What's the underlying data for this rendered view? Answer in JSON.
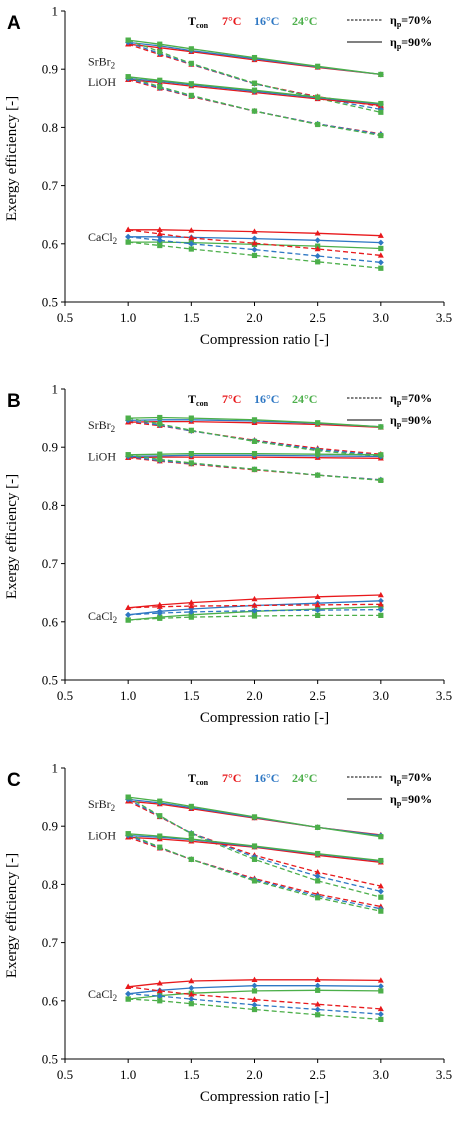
{
  "colors": {
    "red": "#e8191c",
    "blue": "#2f78c4",
    "green": "#4caf4a",
    "text": "#000000"
  },
  "legend": {
    "tcon_prefix": "T",
    "tcon_sub": "con",
    "temps": [
      "7°C",
      "16°C",
      "24°C"
    ],
    "line_styles": [
      {
        "style": "dashed",
        "eta": "η",
        "sub": "p",
        "text": "=70%"
      },
      {
        "style": "solid",
        "eta": "η",
        "sub": "p",
        "text": "=90%"
      }
    ]
  },
  "chart_data": [
    {
      "panel": "A",
      "type": "line",
      "xlabel": "Compression ratio [-]",
      "ylabel": "Exergy efficiency [-]",
      "xlim": [
        0.5,
        3.5
      ],
      "ylim": [
        0.5,
        1.0
      ],
      "x_ticks": [
        "0.5",
        "1.0",
        "1.5",
        "2.0",
        "2.5",
        "3.0",
        "3.5"
      ],
      "y_ticks": [
        "0.5",
        "0.6",
        "0.7",
        "0.8",
        "0.9",
        "1"
      ],
      "x": [
        1.0,
        1.25,
        1.5,
        2.0,
        2.5,
        3.0
      ],
      "material_labels": [
        {
          "base": "SrBr",
          "sub": "2",
          "y": 0.913
        },
        {
          "base": "LiOH",
          "sub": "",
          "y": 0.878
        },
        {
          "base": "CaCl",
          "sub": "2",
          "y": 0.612
        }
      ],
      "series": [
        {
          "material": "SrBr2",
          "tcon": "7°C",
          "eta_p": "90%",
          "style": "solid",
          "values": [
            0.943,
            0.937,
            0.93,
            0.916,
            0.903,
            0.891
          ]
        },
        {
          "material": "SrBr2",
          "tcon": "16°C",
          "eta_p": "90%",
          "style": "solid",
          "values": [
            0.946,
            0.94,
            0.932,
            0.918,
            0.904,
            0.891
          ]
        },
        {
          "material": "SrBr2",
          "tcon": "24°C",
          "eta_p": "90%",
          "style": "solid",
          "values": [
            0.95,
            0.943,
            0.935,
            0.92,
            0.905,
            0.891
          ]
        },
        {
          "material": "SrBr2",
          "tcon": "7°C",
          "eta_p": "70%",
          "style": "dashed",
          "values": [
            0.943,
            0.925,
            0.908,
            0.875,
            0.853,
            0.836
          ]
        },
        {
          "material": "SrBr2",
          "tcon": "16°C",
          "eta_p": "70%",
          "style": "dashed",
          "values": [
            0.946,
            0.927,
            0.909,
            0.875,
            0.851,
            0.831
          ]
        },
        {
          "material": "SrBr2",
          "tcon": "24°C",
          "eta_p": "70%",
          "style": "dashed",
          "values": [
            0.95,
            0.93,
            0.91,
            0.876,
            0.85,
            0.826
          ]
        },
        {
          "material": "LiOH",
          "tcon": "7°C",
          "eta_p": "90%",
          "style": "solid",
          "values": [
            0.882,
            0.877,
            0.871,
            0.86,
            0.849,
            0.838
          ]
        },
        {
          "material": "LiOH",
          "tcon": "16°C",
          "eta_p": "90%",
          "style": "solid",
          "values": [
            0.884,
            0.879,
            0.873,
            0.862,
            0.851,
            0.84
          ]
        },
        {
          "material": "LiOH",
          "tcon": "24°C",
          "eta_p": "90%",
          "style": "solid",
          "values": [
            0.887,
            0.881,
            0.875,
            0.864,
            0.852,
            0.841
          ]
        },
        {
          "material": "LiOH",
          "tcon": "7°C",
          "eta_p": "70%",
          "style": "dashed",
          "values": [
            0.882,
            0.867,
            0.853,
            0.828,
            0.806,
            0.789
          ]
        },
        {
          "material": "LiOH",
          "tcon": "16°C",
          "eta_p": "70%",
          "style": "dashed",
          "values": [
            0.884,
            0.868,
            0.854,
            0.828,
            0.806,
            0.788
          ]
        },
        {
          "material": "LiOH",
          "tcon": "24°C",
          "eta_p": "70%",
          "style": "dashed",
          "values": [
            0.887,
            0.87,
            0.855,
            0.828,
            0.805,
            0.786
          ]
        },
        {
          "material": "CaCl2",
          "tcon": "7°C",
          "eta_p": "90%",
          "style": "solid",
          "values": [
            0.624,
            0.624,
            0.623,
            0.621,
            0.618,
            0.614
          ]
        },
        {
          "material": "CaCl2",
          "tcon": "16°C",
          "eta_p": "90%",
          "style": "solid",
          "values": [
            0.612,
            0.612,
            0.611,
            0.609,
            0.606,
            0.602
          ]
        },
        {
          "material": "CaCl2",
          "tcon": "24°C",
          "eta_p": "90%",
          "style": "solid",
          "values": [
            0.603,
            0.603,
            0.602,
            0.599,
            0.596,
            0.592
          ]
        },
        {
          "material": "CaCl2",
          "tcon": "7°C",
          "eta_p": "70%",
          "style": "dashed",
          "values": [
            0.624,
            0.617,
            0.61,
            0.601,
            0.591,
            0.58
          ]
        },
        {
          "material": "CaCl2",
          "tcon": "16°C",
          "eta_p": "70%",
          "style": "dashed",
          "values": [
            0.612,
            0.606,
            0.6,
            0.59,
            0.579,
            0.568
          ]
        },
        {
          "material": "CaCl2",
          "tcon": "24°C",
          "eta_p": "70%",
          "style": "dashed",
          "values": [
            0.603,
            0.597,
            0.591,
            0.58,
            0.569,
            0.558
          ]
        }
      ]
    },
    {
      "panel": "B",
      "type": "line",
      "xlabel": "Compression ratio [-]",
      "ylabel": "Exergy efficiency [-]",
      "xlim": [
        0.5,
        3.5
      ],
      "ylim": [
        0.5,
        1.0
      ],
      "x_ticks": [
        "0.5",
        "1.0",
        "1.5",
        "2.0",
        "2.5",
        "3.0",
        "3.5"
      ],
      "y_ticks": [
        "0.5",
        "0.6",
        "0.7",
        "0.8",
        "0.9",
        "1"
      ],
      "x": [
        1.0,
        1.25,
        1.5,
        2.0,
        2.5,
        3.0
      ],
      "material_labels": [
        {
          "base": "SrBr",
          "sub": "2",
          "y": 0.938
        },
        {
          "base": "LiOH",
          "sub": "",
          "y": 0.884
        },
        {
          "base": "CaCl",
          "sub": "2",
          "y": 0.61
        }
      ],
      "series": [
        {
          "material": "SrBr2",
          "tcon": "7°C",
          "eta_p": "90%",
          "style": "solid",
          "values": [
            0.943,
            0.944,
            0.944,
            0.942,
            0.939,
            0.934
          ]
        },
        {
          "material": "SrBr2",
          "tcon": "16°C",
          "eta_p": "90%",
          "style": "solid",
          "values": [
            0.946,
            0.947,
            0.947,
            0.945,
            0.941,
            0.935
          ]
        },
        {
          "material": "SrBr2",
          "tcon": "24°C",
          "eta_p": "90%",
          "style": "solid",
          "values": [
            0.95,
            0.951,
            0.95,
            0.947,
            0.942,
            0.935
          ]
        },
        {
          "material": "SrBr2",
          "tcon": "7°C",
          "eta_p": "70%",
          "style": "dashed",
          "values": [
            0.943,
            0.937,
            0.928,
            0.912,
            0.898,
            0.888
          ]
        },
        {
          "material": "SrBr2",
          "tcon": "16°C",
          "eta_p": "70%",
          "style": "dashed",
          "values": [
            0.946,
            0.938,
            0.928,
            0.911,
            0.896,
            0.886
          ]
        },
        {
          "material": "SrBr2",
          "tcon": "24°C",
          "eta_p": "70%",
          "style": "dashed",
          "values": [
            0.95,
            0.94,
            0.929,
            0.91,
            0.894,
            0.884
          ]
        },
        {
          "material": "LiOH",
          "tcon": "7°C",
          "eta_p": "90%",
          "style": "solid",
          "values": [
            0.882,
            0.883,
            0.883,
            0.883,
            0.882,
            0.881
          ]
        },
        {
          "material": "LiOH",
          "tcon": "16°C",
          "eta_p": "90%",
          "style": "solid",
          "values": [
            0.884,
            0.885,
            0.886,
            0.886,
            0.885,
            0.884
          ]
        },
        {
          "material": "LiOH",
          "tcon": "24°C",
          "eta_p": "90%",
          "style": "solid",
          "values": [
            0.887,
            0.888,
            0.889,
            0.889,
            0.888,
            0.887
          ]
        },
        {
          "material": "LiOH",
          "tcon": "7°C",
          "eta_p": "70%",
          "style": "dashed",
          "values": [
            0.882,
            0.876,
            0.871,
            0.861,
            0.852,
            0.844
          ]
        },
        {
          "material": "LiOH",
          "tcon": "16°C",
          "eta_p": "70%",
          "style": "dashed",
          "values": [
            0.884,
            0.877,
            0.872,
            0.862,
            0.852,
            0.844
          ]
        },
        {
          "material": "LiOH",
          "tcon": "24°C",
          "eta_p": "70%",
          "style": "dashed",
          "values": [
            0.887,
            0.879,
            0.873,
            0.862,
            0.852,
            0.843
          ]
        },
        {
          "material": "CaCl2",
          "tcon": "7°C",
          "eta_p": "90%",
          "style": "solid",
          "values": [
            0.624,
            0.629,
            0.633,
            0.639,
            0.643,
            0.646
          ]
        },
        {
          "material": "CaCl2",
          "tcon": "16°C",
          "eta_p": "90%",
          "style": "solid",
          "values": [
            0.612,
            0.618,
            0.622,
            0.628,
            0.632,
            0.636
          ]
        },
        {
          "material": "CaCl2",
          "tcon": "24°C",
          "eta_p": "90%",
          "style": "solid",
          "values": [
            0.603,
            0.608,
            0.612,
            0.618,
            0.622,
            0.626
          ]
        },
        {
          "material": "CaCl2",
          "tcon": "7°C",
          "eta_p": "70%",
          "style": "dashed",
          "values": [
            0.624,
            0.626,
            0.627,
            0.628,
            0.629,
            0.63
          ]
        },
        {
          "material": "CaCl2",
          "tcon": "16°C",
          "eta_p": "70%",
          "style": "dashed",
          "values": [
            0.612,
            0.615,
            0.617,
            0.619,
            0.62,
            0.621
          ]
        },
        {
          "material": "CaCl2",
          "tcon": "24°C",
          "eta_p": "70%",
          "style": "dashed",
          "values": [
            0.603,
            0.606,
            0.608,
            0.61,
            0.611,
            0.611
          ]
        }
      ]
    },
    {
      "panel": "C",
      "type": "line",
      "xlabel": "Compression ratio [-]",
      "ylabel": "Exergy efficiency [-]",
      "xlim": [
        0.5,
        3.5
      ],
      "ylim": [
        0.5,
        1.0
      ],
      "x_ticks": [
        "0.5",
        "1.0",
        "1.5",
        "2.0",
        "2.5",
        "3.0",
        "3.5"
      ],
      "y_ticks": [
        "0.5",
        "0.6",
        "0.7",
        "0.8",
        "0.9",
        "1"
      ],
      "x": [
        1.0,
        1.25,
        1.5,
        2.0,
        2.5,
        3.0
      ],
      "material_labels": [
        {
          "base": "SrBr",
          "sub": "2",
          "y": 0.938
        },
        {
          "base": "LiOH",
          "sub": "",
          "y": 0.884
        },
        {
          "base": "CaCl",
          "sub": "2",
          "y": 0.612
        }
      ],
      "series": [
        {
          "material": "SrBr2",
          "tcon": "7°C",
          "eta_p": "90%",
          "style": "solid",
          "values": [
            0.943,
            0.938,
            0.93,
            0.914,
            0.898,
            0.885
          ]
        },
        {
          "material": "SrBr2",
          "tcon": "16°C",
          "eta_p": "90%",
          "style": "solid",
          "values": [
            0.946,
            0.94,
            0.932,
            0.915,
            0.898,
            0.884
          ]
        },
        {
          "material": "SrBr2",
          "tcon": "24°C",
          "eta_p": "90%",
          "style": "solid",
          "values": [
            0.95,
            0.943,
            0.934,
            0.916,
            0.898,
            0.882
          ]
        },
        {
          "material": "SrBr2",
          "tcon": "7°C",
          "eta_p": "70%",
          "style": "dashed",
          "values": [
            0.943,
            0.916,
            0.888,
            0.85,
            0.821,
            0.797
          ]
        },
        {
          "material": "SrBr2",
          "tcon": "16°C",
          "eta_p": "70%",
          "style": "dashed",
          "values": [
            0.946,
            0.917,
            0.888,
            0.847,
            0.814,
            0.788
          ]
        },
        {
          "material": "SrBr2",
          "tcon": "24°C",
          "eta_p": "70%",
          "style": "dashed",
          "values": [
            0.95,
            0.918,
            0.887,
            0.843,
            0.806,
            0.778
          ]
        },
        {
          "material": "LiOH",
          "tcon": "7°C",
          "eta_p": "90%",
          "style": "solid",
          "values": [
            0.881,
            0.878,
            0.874,
            0.864,
            0.85,
            0.838
          ]
        },
        {
          "material": "LiOH",
          "tcon": "16°C",
          "eta_p": "90%",
          "style": "solid",
          "values": [
            0.884,
            0.881,
            0.877,
            0.865,
            0.852,
            0.84
          ]
        },
        {
          "material": "LiOH",
          "tcon": "24°C",
          "eta_p": "90%",
          "style": "solid",
          "values": [
            0.887,
            0.883,
            0.878,
            0.866,
            0.853,
            0.841
          ]
        },
        {
          "material": "LiOH",
          "tcon": "7°C",
          "eta_p": "70%",
          "style": "dashed",
          "values": [
            0.881,
            0.862,
            0.843,
            0.81,
            0.783,
            0.762
          ]
        },
        {
          "material": "LiOH",
          "tcon": "16°C",
          "eta_p": "70%",
          "style": "dashed",
          "values": [
            0.884,
            0.863,
            0.843,
            0.808,
            0.78,
            0.758
          ]
        },
        {
          "material": "LiOH",
          "tcon": "24°C",
          "eta_p": "70%",
          "style": "dashed",
          "values": [
            0.887,
            0.864,
            0.843,
            0.806,
            0.777,
            0.754
          ]
        },
        {
          "material": "CaCl2",
          "tcon": "7°C",
          "eta_p": "90%",
          "style": "solid",
          "values": [
            0.624,
            0.63,
            0.634,
            0.636,
            0.636,
            0.635
          ]
        },
        {
          "material": "CaCl2",
          "tcon": "16°C",
          "eta_p": "90%",
          "style": "solid",
          "values": [
            0.612,
            0.618,
            0.622,
            0.626,
            0.626,
            0.625
          ]
        },
        {
          "material": "CaCl2",
          "tcon": "24°C",
          "eta_p": "90%",
          "style": "solid",
          "values": [
            0.603,
            0.609,
            0.613,
            0.617,
            0.618,
            0.617
          ]
        },
        {
          "material": "CaCl2",
          "tcon": "7°C",
          "eta_p": "70%",
          "style": "dashed",
          "values": [
            0.624,
            0.617,
            0.611,
            0.602,
            0.594,
            0.586
          ]
        },
        {
          "material": "CaCl2",
          "tcon": "16°C",
          "eta_p": "70%",
          "style": "dashed",
          "values": [
            0.612,
            0.608,
            0.603,
            0.593,
            0.585,
            0.577
          ]
        },
        {
          "material": "CaCl2",
          "tcon": "24°C",
          "eta_p": "70%",
          "style": "dashed",
          "values": [
            0.603,
            0.6,
            0.595,
            0.585,
            0.576,
            0.568
          ]
        }
      ]
    }
  ]
}
